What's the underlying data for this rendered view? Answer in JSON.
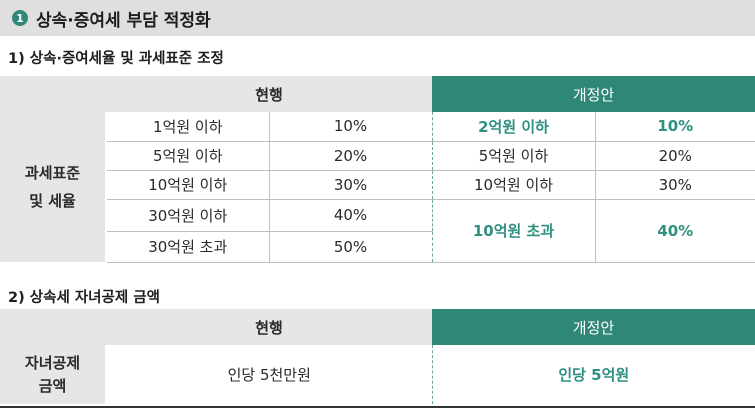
{
  "section": {
    "badge": "1",
    "title": "상속·증여세 부담 적정화"
  },
  "table1": {
    "heading": "1) 상속·증여세율 및 과세표준 조정",
    "current_label": "현행",
    "revised_label": "개정안",
    "row_label_line1": "과세표준",
    "row_label_line2": "및 세율",
    "current_rows": [
      {
        "bracket": "1억원 이하",
        "rate": "10%"
      },
      {
        "bracket": "5억원 이하",
        "rate": "20%"
      },
      {
        "bracket": "10억원 이하",
        "rate": "30%"
      },
      {
        "bracket": "30억원 이하",
        "rate": "40%"
      },
      {
        "bracket": "30억원 초과",
        "rate": "50%"
      }
    ],
    "revised_rows": [
      {
        "bracket": "2억원 이하",
        "rate": "10%"
      },
      {
        "bracket": "5억원 이하",
        "rate": "20%"
      },
      {
        "bracket": "10억원 이하",
        "rate": "30%"
      },
      {
        "bracket": "10억원 초과",
        "rate": "40%"
      }
    ]
  },
  "table2": {
    "heading": "2) 상속세 자녀공제 금액",
    "current_label": "현행",
    "revised_label": "개정안",
    "row_label_line1": "자녀공제",
    "row_label_line2": "금액",
    "current_value": "인당 5천만원",
    "revised_value": "인당 5억원"
  },
  "colors": {
    "accent": "#2f8778",
    "highlight_text": "#2f8f80",
    "header_gray": "#e6e6e6"
  }
}
